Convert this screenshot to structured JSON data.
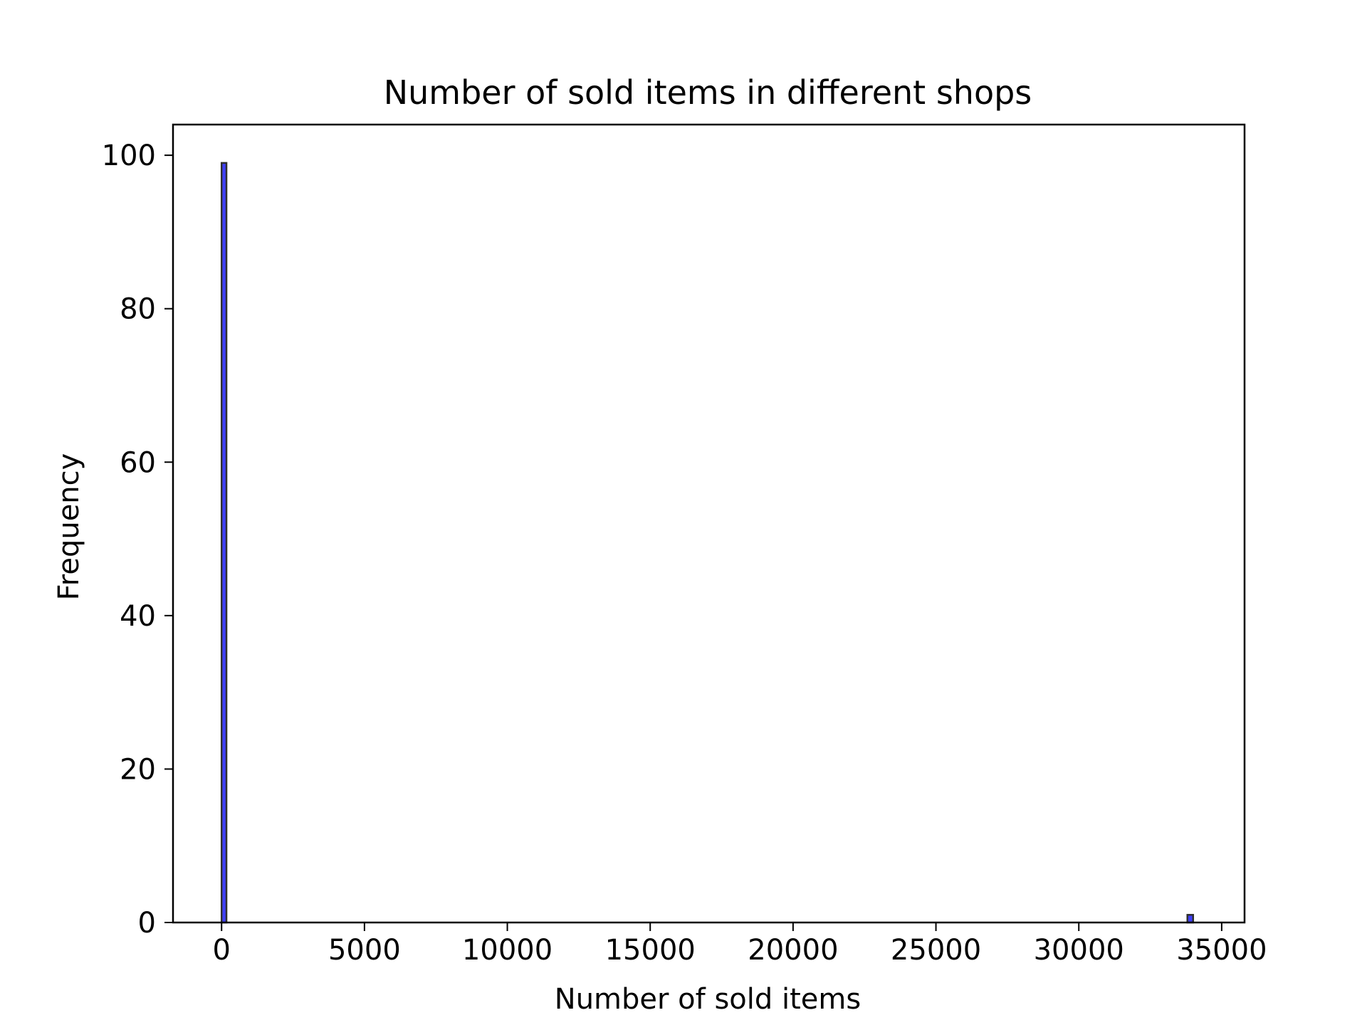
{
  "chart_data": {
    "type": "bar",
    "title": "Number of sold items in different shops",
    "xlabel": "Number of sold items",
    "ylabel": "Frequency",
    "xlim": [
      -1700,
      35800
    ],
    "ylim": [
      0,
      104
    ],
    "xticks": [
      0,
      5000,
      10000,
      15000,
      20000,
      25000,
      30000,
      35000
    ],
    "xtick_labels": [
      "0",
      "5000",
      "10000",
      "15000",
      "20000",
      "25000",
      "30000",
      "35000"
    ],
    "yticks": [
      0,
      20,
      40,
      60,
      80,
      100
    ],
    "ytick_labels": [
      "0",
      "20",
      "40",
      "60",
      "80",
      "100"
    ],
    "bins": [
      {
        "x_start": 0,
        "x_end": 170,
        "count": 99
      },
      {
        "x_start": 33800,
        "x_end": 34000,
        "count": 1
      }
    ],
    "grid": false,
    "bar_fill": "#0000ff",
    "bar_edge": "#2f2f2f",
    "bar_alpha": 0.75
  }
}
